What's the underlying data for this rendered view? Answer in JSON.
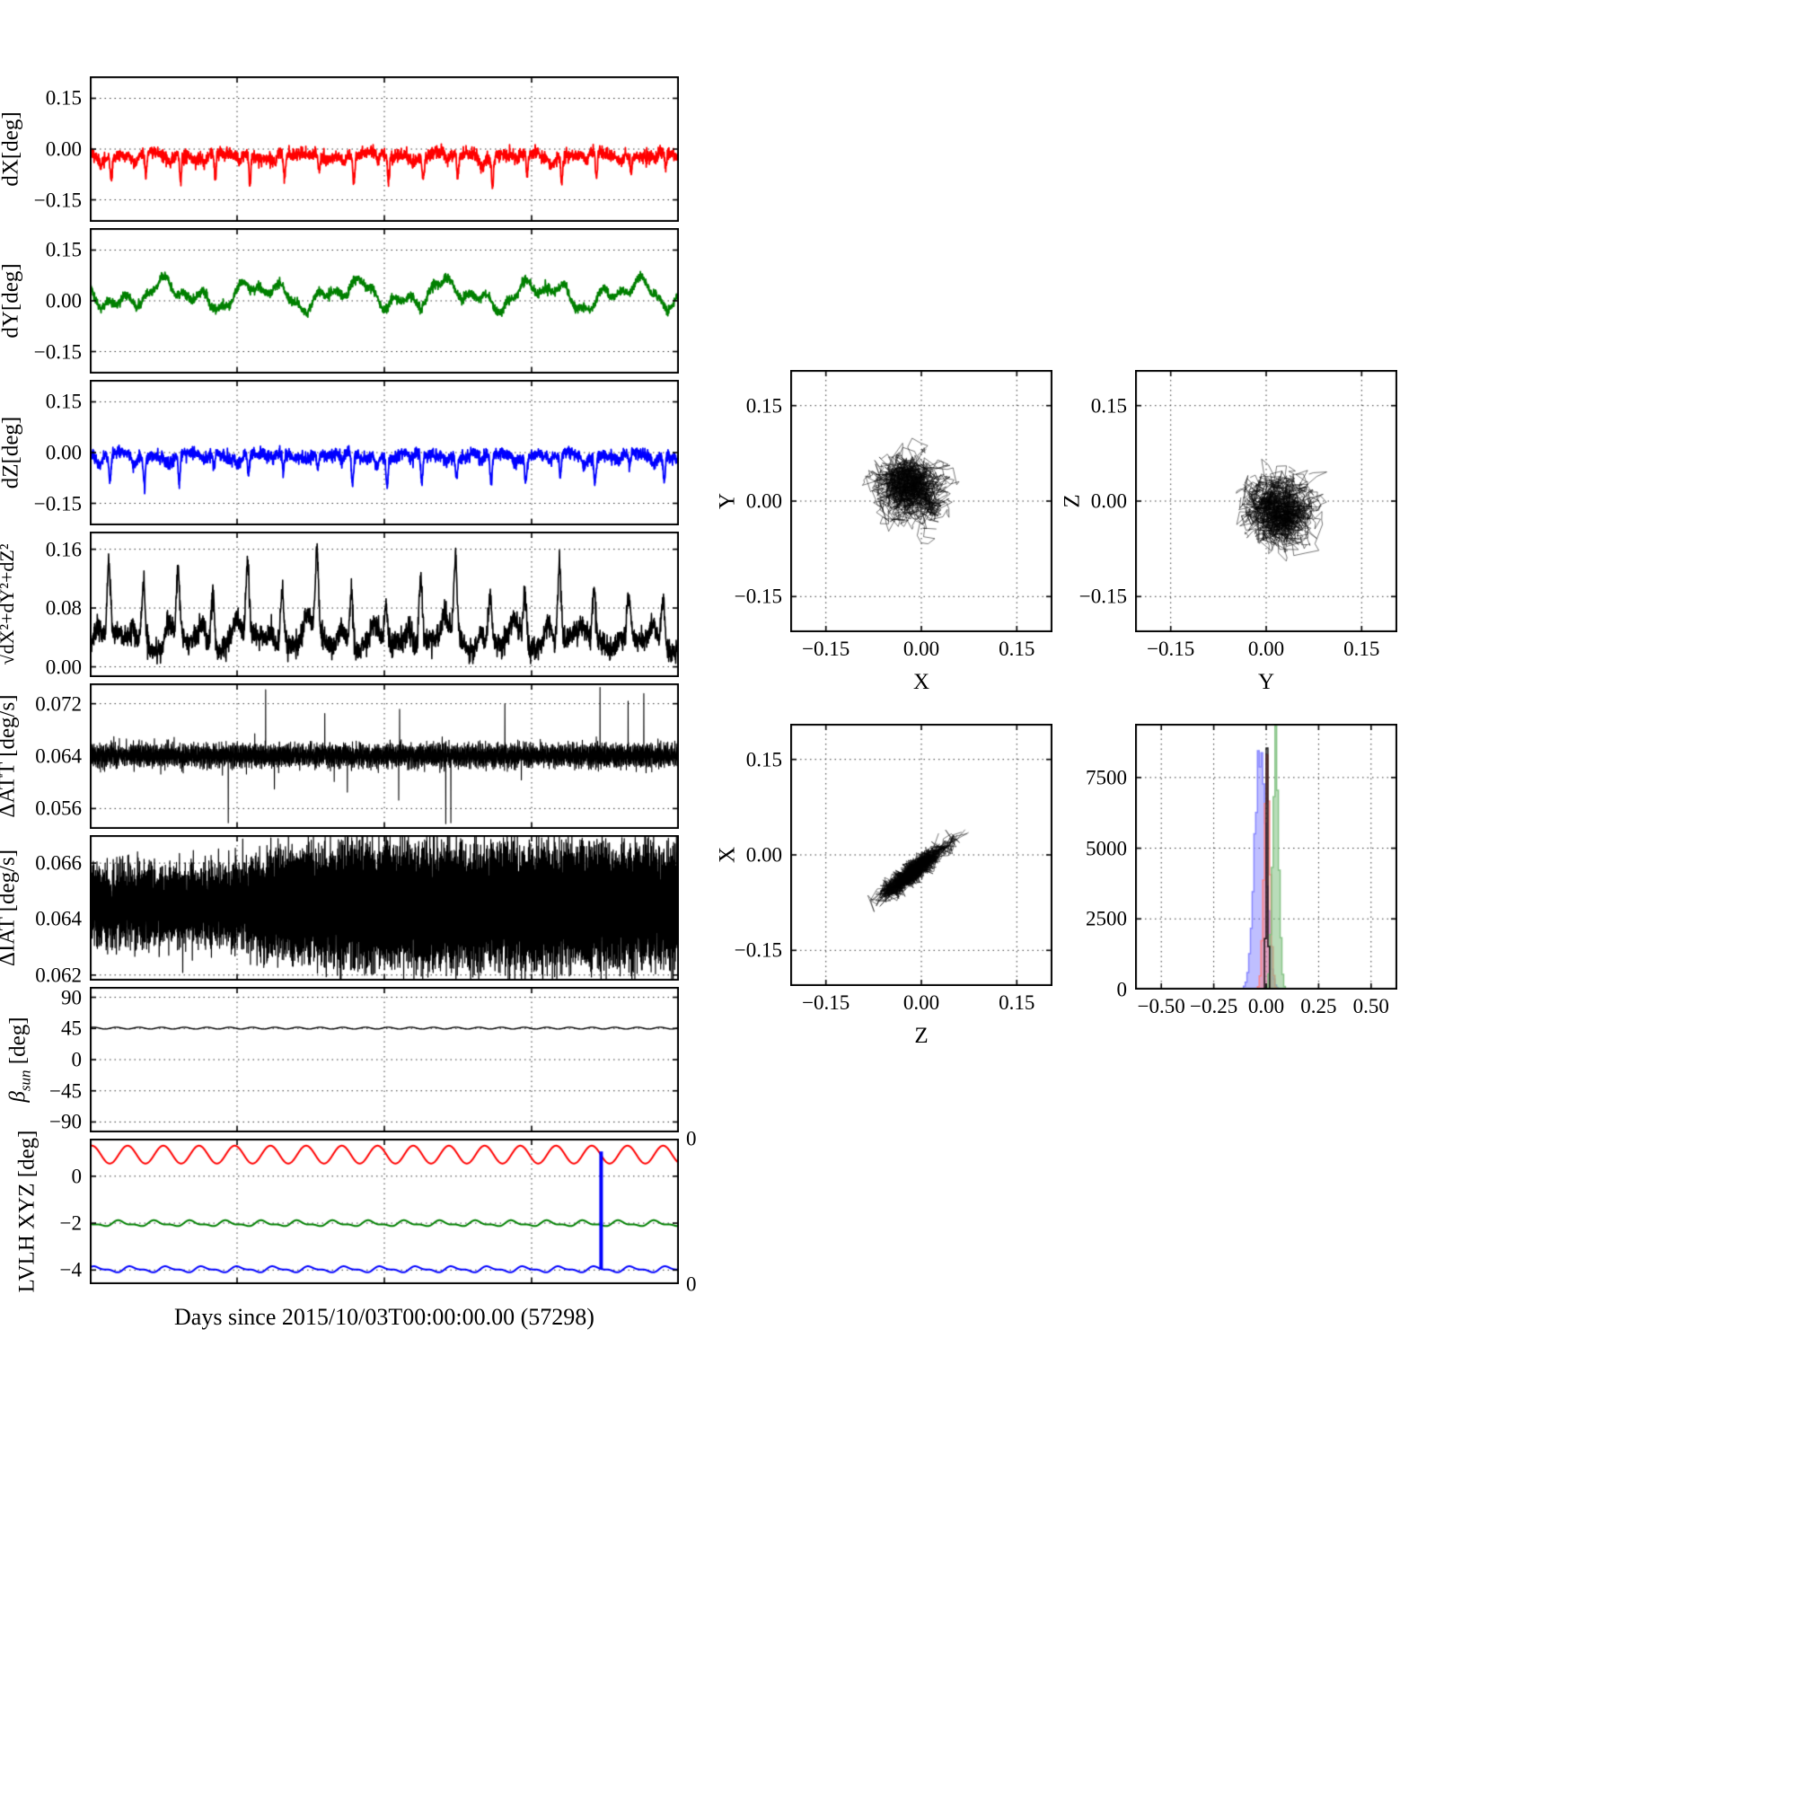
{
  "figure": {
    "background": "#ffffff",
    "font_color": "#000000"
  },
  "xaxis_label": "Days since 2015/10/03T00:00:00.00 (57298)",
  "chart_data": [
    {
      "id": "dX",
      "type": "line",
      "ylabel": "dX[deg]",
      "xlim": [
        0,
        1
      ],
      "ylim": [
        -0.215,
        0.215
      ],
      "grid": true,
      "xticks": [
        {
          "v": 0
        },
        {
          "v": 0.25
        },
        {
          "v": 0.5
        },
        {
          "v": 0.75
        },
        {
          "v": 1
        }
      ],
      "yticks": [
        {
          "v": 0.15,
          "label": "0.15"
        },
        {
          "v": 0,
          "label": "0.00"
        },
        {
          "v": -0.15,
          "label": "−0.15"
        }
      ],
      "series": [
        {
          "kind": "spiky",
          "color": "#ff0000",
          "lw": 1.8,
          "n": 2600,
          "seed": 11,
          "base": -0.018,
          "noise": 0.009,
          "wanderAmp": 0.012,
          "wanderFreq": 8,
          "periods": 17,
          "dipMin": 0.04,
          "dipMax": 0.1,
          "dipCenter": 0.62,
          "dipWidth": 0.04,
          "sign": -1
        }
      ]
    },
    {
      "id": "dY",
      "type": "line",
      "ylabel": "dY[deg]",
      "xlim": [
        0,
        1
      ],
      "ylim": [
        -0.215,
        0.215
      ],
      "grid": true,
      "xticks": [
        {
          "v": 0
        },
        {
          "v": 0.25
        },
        {
          "v": 0.5
        },
        {
          "v": 0.75
        },
        {
          "v": 1
        }
      ],
      "yticks": [
        {
          "v": 0.15,
          "label": "0.15"
        },
        {
          "v": 0,
          "label": "0.00"
        },
        {
          "v": -0.15,
          "label": "−0.15"
        }
      ],
      "series": [
        {
          "kind": "wander",
          "color": "#008000",
          "lw": 1.8,
          "n": 2400,
          "seed": 21,
          "base": 0.018,
          "noise": 0.007,
          "comps": [
            [
              0.028,
              6.3
            ],
            [
              0.02,
              14.7
            ],
            [
              0.012,
              31
            ]
          ]
        }
      ]
    },
    {
      "id": "dZ",
      "type": "line",
      "ylabel": "dZ[deg]",
      "xlim": [
        0,
        1
      ],
      "ylim": [
        -0.215,
        0.215
      ],
      "grid": true,
      "xticks": [
        {
          "v": 0
        },
        {
          "v": 0.25
        },
        {
          "v": 0.5
        },
        {
          "v": 0.75
        },
        {
          "v": 1
        }
      ],
      "yticks": [
        {
          "v": 0.15,
          "label": "0.15"
        },
        {
          "v": 0,
          "label": "0.00"
        },
        {
          "v": -0.15,
          "label": "−0.15"
        }
      ],
      "series": [
        {
          "kind": "spiky",
          "color": "#0000ff",
          "lw": 1.8,
          "n": 2600,
          "seed": 31,
          "base": -0.008,
          "noise": 0.009,
          "wanderAmp": 0.011,
          "wanderFreq": 8,
          "periods": 17,
          "dipMin": 0.035,
          "dipMax": 0.1,
          "dipCenter": 0.58,
          "dipWidth": 0.042,
          "sign": -1
        }
      ]
    },
    {
      "id": "magnitude",
      "type": "line",
      "ylabel": "√dX²+dY²+dZ²",
      "ylabel_parts": {
        "radical": "√",
        "radicand": "dX²+dY²+dZ²"
      },
      "xlim": [
        0,
        1
      ],
      "ylim": [
        -0.014,
        0.184
      ],
      "grid": true,
      "xticks": [
        {
          "v": 0
        },
        {
          "v": 0.25
        },
        {
          "v": 0.5
        },
        {
          "v": 0.75
        },
        {
          "v": 1
        }
      ],
      "yticks": [
        {
          "v": 0.16,
          "label": "0.16"
        },
        {
          "v": 0.08,
          "label": "0.08"
        },
        {
          "v": 0,
          "label": "0.00"
        }
      ],
      "series": [
        {
          "kind": "spiky",
          "color": "#000000",
          "lw": 1.6,
          "n": 2600,
          "seed": 41,
          "base": 0.032,
          "noise": 0.008,
          "wanderAmp": 0.015,
          "wanderFreq": 9,
          "periods": 17,
          "dipMin": 0.04,
          "dipMax": 0.12,
          "dipCenter": 0.55,
          "dipWidth": 0.07,
          "sign": 1,
          "floor": 0.004
        }
      ]
    },
    {
      "id": "delta-att",
      "type": "line",
      "ylabel": "ΔATT [deg/s]",
      "xlim": [
        0,
        1
      ],
      "ylim": [
        0.0529,
        0.0751
      ],
      "grid": true,
      "xticks": [
        {
          "v": 0
        },
        {
          "v": 0.25
        },
        {
          "v": 0.5
        },
        {
          "v": 0.75
        },
        {
          "v": 1
        }
      ],
      "yticks": [
        {
          "v": 0.072,
          "label": "0.072"
        },
        {
          "v": 0.064,
          "label": "0.064"
        },
        {
          "v": 0.056,
          "label": "0.056"
        }
      ],
      "series": [
        {
          "kind": "densenoise",
          "color": "#000000",
          "lw": 1.1,
          "n": 6000,
          "seed": 51,
          "base": 0.0641,
          "amp": 0.0013,
          "freq": 420,
          "noise": 0.0006,
          "outliers": {
            "count": 16,
            "min": 0.003,
            "max": 0.011
          }
        }
      ]
    },
    {
      "id": "delta-iat",
      "type": "line",
      "ylabel": "ΔIAT [deg/s]",
      "xlim": [
        0,
        1
      ],
      "ylim": [
        0.0618,
        0.067
      ],
      "grid": true,
      "xticks": [
        {
          "v": 0
        },
        {
          "v": 0.25
        },
        {
          "v": 0.5
        },
        {
          "v": 0.75
        },
        {
          "v": 1
        }
      ],
      "yticks": [
        {
          "v": 0.066,
          "label": "0.066"
        },
        {
          "v": 0.064,
          "label": "0.064"
        },
        {
          "v": 0.062,
          "label": "0.062"
        }
      ],
      "series": [
        {
          "kind": "densenoise",
          "color": "#000000",
          "lw": 1.2,
          "n": 7000,
          "seed": 61,
          "base": 0.0645,
          "amp": 0.0012,
          "ampEnd": 0.0023,
          "rampStart": 0.15,
          "rampEnd": 0.45,
          "freq": 800,
          "noise": 0.0004
        }
      ]
    },
    {
      "id": "beta-sun",
      "type": "line",
      "ylabel": "βsun [deg]",
      "ylabel_parts": {
        "symbol": "β",
        "sub": "sun",
        "rest": " [deg]"
      },
      "xlim": [
        0,
        1
      ],
      "ylim": [
        -105,
        105
      ],
      "grid": true,
      "xticks": [
        {
          "v": 0
        },
        {
          "v": 0.25
        },
        {
          "v": 0.5
        },
        {
          "v": 0.75
        },
        {
          "v": 1
        }
      ],
      "yticks": [
        {
          "v": 90,
          "label": "90"
        },
        {
          "v": 45,
          "label": "45"
        },
        {
          "v": 0,
          "label": "0"
        },
        {
          "v": -45,
          "label": "−45"
        },
        {
          "v": -90,
          "label": "−90"
        }
      ],
      "series": [
        {
          "kind": "sine",
          "color": "#000000",
          "lw": 1.4,
          "n": 2000,
          "seed": 71,
          "mean": 45.5,
          "amp": 1.3,
          "freq": 26,
          "phase": 0.5
        }
      ]
    },
    {
      "id": "lvlh-xyz",
      "type": "line",
      "ylabel": "LVLH XYZ [deg]",
      "xlim": [
        0,
        1
      ],
      "ylim": [
        -4.6,
        1.6
      ],
      "grid": true,
      "xticks": [
        {
          "v": 0
        },
        {
          "v": 0.25
        },
        {
          "v": 0.5
        },
        {
          "v": 0.75
        },
        {
          "v": 1
        }
      ],
      "yticks": [
        {
          "v": 0,
          "label": "0"
        },
        {
          "v": -2,
          "label": "−2"
        },
        {
          "v": -4,
          "label": "−4"
        }
      ],
      "right_ticks": [
        {
          "frac": 0,
          "label": "0"
        },
        {
          "frac": 1,
          "label": "0"
        }
      ],
      "series": [
        {
          "kind": "sine",
          "color": "#ff0000",
          "lw": 2,
          "n": 2600,
          "seed": 81,
          "mean": 0.92,
          "amp": 0.38,
          "freq": 16.5,
          "phase": 1.2
        },
        {
          "kind": "sine",
          "color": "#008000",
          "lw": 2,
          "n": 2600,
          "seed": 82,
          "mean": -2.02,
          "amp": 0.1,
          "freq": 16.5,
          "phase": 2.6,
          "harmAmp": 0.05,
          "harmFreq": 33
        },
        {
          "kind": "sine",
          "color": "#0000ff",
          "lw": 2,
          "n": 2600,
          "seed": 83,
          "mean": -3.97,
          "amp": 0.1,
          "freq": 16.5,
          "phase": 0.4,
          "harmAmp": 0.05,
          "harmFreq": 33
        }
      ],
      "vspike": {
        "x": 0.868,
        "y0": -3.97,
        "y1": 1.05,
        "color": "#0000ff",
        "lw": 4
      }
    },
    {
      "id": "scatter-y-vs-x",
      "type": "scatter",
      "xlabel": "X",
      "ylabel": "Y",
      "xlim": [
        -0.206,
        0.206
      ],
      "ylim": [
        -0.206,
        0.206
      ],
      "grid": true,
      "xticks": [
        {
          "v": -0.15,
          "label": "−0.15"
        },
        {
          "v": 0,
          "label": "0.00"
        },
        {
          "v": 0.15,
          "label": "0.15"
        }
      ],
      "yticks": [
        {
          "v": 0.15,
          "label": "0.15"
        },
        {
          "v": 0,
          "label": "0.00"
        },
        {
          "v": -0.15,
          "label": "−0.15"
        }
      ],
      "series": [
        {
          "kind": "blob",
          "walks": 42,
          "steps": 46,
          "cx": -0.02,
          "cy": 0.02,
          "sx": 0.03,
          "sy": 0.026,
          "step": 0.01,
          "pull": 0.1,
          "tailFrac": 0.18,
          "tailDir": [
            -0.7,
            0.5
          ],
          "seed": 91
        }
      ]
    },
    {
      "id": "scatter-z-vs-y",
      "type": "scatter",
      "xlabel": "Y",
      "ylabel": "Z",
      "xlim": [
        -0.206,
        0.206
      ],
      "ylim": [
        -0.206,
        0.206
      ],
      "grid": true,
      "xticks": [
        {
          "v": -0.15,
          "label": "−0.15"
        },
        {
          "v": 0,
          "label": "0.00"
        },
        {
          "v": 0.15,
          "label": "0.15"
        }
      ],
      "yticks": [
        {
          "v": 0.15,
          "label": "0.15"
        },
        {
          "v": 0,
          "label": "0.00"
        },
        {
          "v": -0.15,
          "label": "−0.15"
        }
      ],
      "series": [
        {
          "kind": "blob",
          "walks": 42,
          "steps": 46,
          "cx": 0.02,
          "cy": -0.012,
          "sx": 0.026,
          "sy": 0.024,
          "step": 0.01,
          "pull": 0.1,
          "tailFrac": 0.2,
          "tailDir": [
            0.55,
            -0.8
          ],
          "seed": 92
        }
      ]
    },
    {
      "id": "scatter-x-vs-z",
      "type": "scatter",
      "xlabel": "Z",
      "ylabel": "X",
      "xlim": [
        -0.206,
        0.206
      ],
      "ylim": [
        -0.206,
        0.206
      ],
      "grid": true,
      "xticks": [
        {
          "v": -0.15,
          "label": "−0.15"
        },
        {
          "v": 0,
          "label": "0.00"
        },
        {
          "v": 0.15,
          "label": "0.15"
        }
      ],
      "yticks": [
        {
          "v": 0.15,
          "label": "0.15"
        },
        {
          "v": 0,
          "label": "0.00"
        },
        {
          "v": -0.15,
          "label": "−0.15"
        }
      ],
      "series": [
        {
          "kind": "diag",
          "walks": 40,
          "steps": 50,
          "cx": -0.015,
          "cy": -0.028,
          "dir": [
            0.78,
            0.63
          ],
          "extent": 0.055,
          "jitter": 0.007,
          "step": 0.012,
          "seed": 93
        }
      ]
    },
    {
      "id": "histogram",
      "type": "hist",
      "xlim": [
        -0.625,
        0.625
      ],
      "ylim": [
        0,
        9400
      ],
      "grid": true,
      "bins": 150,
      "xticks": [
        {
          "v": -0.5,
          "label": "−0.50"
        },
        {
          "v": -0.25,
          "label": "−0.25"
        },
        {
          "v": 0,
          "label": "0.00"
        },
        {
          "v": 0.25,
          "label": "0.25"
        },
        {
          "v": 0.5,
          "label": "0.50"
        }
      ],
      "yticks": [
        {
          "v": 7500,
          "label": "7500"
        },
        {
          "v": 5000,
          "label": "5000"
        },
        {
          "v": 2500,
          "label": "2500"
        },
        {
          "v": 0,
          "label": "0"
        }
      ],
      "series": [
        {
          "name": "dX-hist",
          "color": "#8080ff",
          "alpha": 0.5,
          "mean": -0.028,
          "std": 0.026,
          "peak": 8600
        },
        {
          "name": "dY-hist",
          "color": "#ff8080",
          "alpha": 0.5,
          "mean": 0.004,
          "std": 0.014,
          "peak": 8300
        },
        {
          "name": "dZ-hist",
          "color": "#80c080",
          "alpha": 0.55,
          "mean": 0.046,
          "std": 0.014,
          "peak": 9000
        },
        {
          "name": "total-hist",
          "color": "#000000",
          "alpha": 0,
          "strokeOnly": true,
          "mean": 0.004,
          "std": 0.0045,
          "peak": 8800
        }
      ]
    }
  ]
}
